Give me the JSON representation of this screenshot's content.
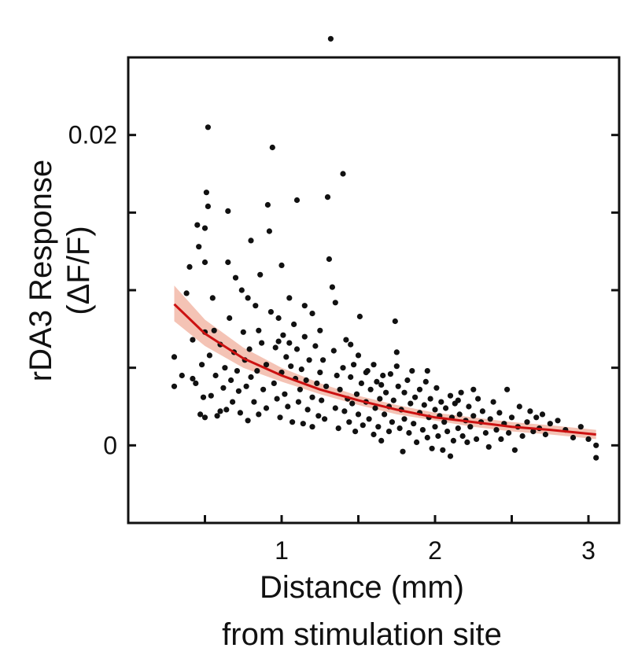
{
  "chart_data": {
    "type": "scatter",
    "title": "",
    "xlabel_lines": [
      "Distance (mm)",
      "from stimulation site"
    ],
    "ylabel_lines": [
      "rDA3 Response",
      "(ΔF/F)"
    ],
    "xlim": [
      0.0,
      3.2
    ],
    "ylim": [
      -0.005,
      0.025
    ],
    "x_ticks": [
      0.5,
      1,
      1.5,
      2,
      2.5,
      3
    ],
    "x_tick_labels": [
      "",
      "1",
      "",
      "2",
      "",
      "3"
    ],
    "y_ticks": [
      0,
      0.005,
      0.01,
      0.015,
      0.02
    ],
    "y_tick_labels": [
      "0",
      "",
      "",
      "",
      "0.02"
    ],
    "grid": false,
    "legend": "none",
    "colors": {
      "points": "#111111",
      "fit": "#cc1111",
      "ci": "#f2b8a8",
      "axis": "#111111"
    },
    "fit": {
      "name": "",
      "x": [
        0.3,
        0.5,
        0.75,
        1.0,
        1.25,
        1.5,
        1.75,
        2.0,
        2.25,
        2.5,
        2.75,
        3.05
      ],
      "y": [
        0.0091,
        0.0072,
        0.0056,
        0.0045,
        0.0036,
        0.0029,
        0.0023,
        0.0018,
        0.0015,
        0.0012,
        0.001,
        0.0007
      ],
      "lower": [
        0.008,
        0.0064,
        0.005,
        0.0041,
        0.0033,
        0.0026,
        0.002,
        0.0016,
        0.0012,
        0.0009,
        0.0007,
        0.0004
      ],
      "upper": [
        0.0103,
        0.0081,
        0.0063,
        0.005,
        0.004,
        0.0032,
        0.0026,
        0.0021,
        0.0018,
        0.0015,
        0.0013,
        0.001
      ]
    },
    "points": [
      [
        0.3,
        0.0057
      ],
      [
        0.3,
        0.0038
      ],
      [
        0.35,
        0.0045
      ],
      [
        0.38,
        0.0098
      ],
      [
        0.4,
        0.0115
      ],
      [
        0.42,
        0.0068
      ],
      [
        0.42,
        0.0043
      ],
      [
        0.44,
        0.004
      ],
      [
        0.45,
        0.0142
      ],
      [
        0.46,
        0.0128
      ],
      [
        0.47,
        0.002
      ],
      [
        0.48,
        0.0052
      ],
      [
        0.49,
        0.0031
      ],
      [
        0.5,
        0.014
      ],
      [
        0.5,
        0.0118
      ],
      [
        0.5,
        0.0073
      ],
      [
        0.5,
        0.0018
      ],
      [
        0.51,
        0.0163
      ],
      [
        0.52,
        0.0154
      ],
      [
        0.52,
        0.0205
      ],
      [
        0.53,
        0.0058
      ],
      [
        0.54,
        0.0032
      ],
      [
        0.55,
        0.0095
      ],
      [
        0.56,
        0.0074
      ],
      [
        0.57,
        0.0045
      ],
      [
        0.58,
        0.0019
      ],
      [
        0.6,
        0.0065
      ],
      [
        0.6,
        0.0022
      ],
      [
        0.62,
        0.0037
      ],
      [
        0.63,
        0.005
      ],
      [
        0.64,
        0.0023
      ],
      [
        0.65,
        0.0118
      ],
      [
        0.65,
        0.0151
      ],
      [
        0.66,
        0.0082
      ],
      [
        0.67,
        0.0042
      ],
      [
        0.68,
        0.0028
      ],
      [
        0.69,
        0.006
      ],
      [
        0.7,
        0.0108
      ],
      [
        0.71,
        0.0048
      ],
      [
        0.72,
        0.0035
      ],
      [
        0.73,
        0.0021
      ],
      [
        0.74,
        0.01
      ],
      [
        0.75,
        0.0073
      ],
      [
        0.76,
        0.0055
      ],
      [
        0.77,
        0.0038
      ],
      [
        0.78,
        0.0016
      ],
      [
        0.79,
        0.0062
      ],
      [
        0.8,
        0.0132
      ],
      [
        0.8,
        0.0044
      ],
      [
        0.82,
        0.0028
      ],
      [
        0.83,
        0.009
      ],
      [
        0.84,
        0.0048
      ],
      [
        0.85,
        0.002
      ],
      [
        0.86,
        0.011
      ],
      [
        0.87,
        0.0066
      ],
      [
        0.88,
        0.0036
      ],
      [
        0.9,
        0.0052
      ],
      [
        0.9,
        0.0024
      ],
      [
        0.91,
        0.0155
      ],
      [
        0.92,
        0.0138
      ],
      [
        0.93,
        0.0086
      ],
      [
        0.94,
        0.0192
      ],
      [
        0.95,
        0.004
      ],
      [
        0.96,
        0.0063
      ],
      [
        0.97,
        0.003
      ],
      [
        0.98,
        0.0082
      ],
      [
        0.99,
        0.0018
      ],
      [
        1.0,
        0.0116
      ],
      [
        1.0,
        0.0047
      ],
      [
        1.01,
        0.0071
      ],
      [
        1.02,
        0.0033
      ],
      [
        1.03,
        0.0057
      ],
      [
        1.04,
        0.0025
      ],
      [
        1.05,
        0.0095
      ],
      [
        1.06,
        0.0051
      ],
      [
        1.07,
        0.0015
      ],
      [
        1.08,
        0.0078
      ],
      [
        1.09,
        0.0043
      ],
      [
        1.1,
        0.0158
      ],
      [
        1.1,
        0.0062
      ],
      [
        1.11,
        0.0028
      ],
      [
        1.12,
        0.0036
      ],
      [
        1.13,
        0.0049
      ],
      [
        1.14,
        0.0014
      ],
      [
        1.15,
        0.007
      ],
      [
        1.16,
        0.0042
      ],
      [
        1.17,
        0.0023
      ],
      [
        1.18,
        0.0055
      ],
      [
        1.2,
        0.0031
      ],
      [
        1.2,
        0.0012
      ],
      [
        1.22,
        0.0064
      ],
      [
        1.23,
        0.004
      ],
      [
        1.24,
        0.0019
      ],
      [
        1.25,
        0.0047
      ],
      [
        1.26,
        0.0029
      ],
      [
        1.27,
        0.0055
      ],
      [
        1.28,
        0.0017
      ],
      [
        1.29,
        0.0038
      ],
      [
        1.3,
        0.016
      ],
      [
        1.31,
        0.012
      ],
      [
        1.32,
        0.0262
      ],
      [
        1.33,
        0.0102
      ],
      [
        1.34,
        0.0061
      ],
      [
        1.35,
        0.0024
      ],
      [
        1.36,
        0.0045
      ],
      [
        1.37,
        0.0011
      ],
      [
        1.38,
        0.0036
      ],
      [
        1.4,
        0.0175
      ],
      [
        1.4,
        0.005
      ],
      [
        1.41,
        0.0022
      ],
      [
        1.42,
        0.0068
      ],
      [
        1.43,
        0.003
      ],
      [
        1.44,
        0.0015
      ],
      [
        1.45,
        0.0044
      ],
      [
        1.46,
        0.0027
      ],
      [
        1.47,
        0.0052
      ],
      [
        1.48,
        0.0009
      ],
      [
        1.49,
        0.0033
      ],
      [
        1.5,
        0.0058
      ],
      [
        1.5,
        0.002
      ],
      [
        1.51,
        0.0083
      ],
      [
        1.52,
        0.004
      ],
      [
        1.53,
        0.0013
      ],
      [
        1.55,
        0.0028
      ],
      [
        1.56,
        0.0048
      ],
      [
        1.57,
        0.0017
      ],
      [
        1.58,
        0.0036
      ],
      [
        1.6,
        0.0007
      ],
      [
        1.6,
        0.0052
      ],
      [
        1.61,
        0.0024
      ],
      [
        1.62,
        0.0041
      ],
      [
        1.63,
        0.0012
      ],
      [
        1.64,
        0.003
      ],
      [
        1.65,
        0.0003
      ],
      [
        1.66,
        0.0045
      ],
      [
        1.67,
        0.002
      ],
      [
        1.68,
        0.0034
      ],
      [
        1.7,
        0.0009
      ],
      [
        1.7,
        0.0025
      ],
      [
        1.71,
        0.0046
      ],
      [
        1.72,
        0.0015
      ],
      [
        1.73,
        0.0029
      ],
      [
        1.74,
        0.008
      ],
      [
        1.75,
        0.006
      ],
      [
        1.76,
        0.0038
      ],
      [
        1.77,
        0.0011
      ],
      [
        1.78,
        0.0023
      ],
      [
        1.79,
        -0.0004
      ],
      [
        1.8,
        0.0034
      ],
      [
        1.8,
        0.0017
      ],
      [
        1.82,
        0.0042
      ],
      [
        1.83,
        0.0008
      ],
      [
        1.84,
        0.0027
      ],
      [
        1.85,
        0.0048
      ],
      [
        1.86,
        0.0014
      ],
      [
        1.87,
        0.0031
      ],
      [
        1.88,
        0.0002
      ],
      [
        1.9,
        0.0021
      ],
      [
        1.9,
        0.0036
      ],
      [
        1.92,
        0.001
      ],
      [
        1.93,
        0.0026
      ],
      [
        1.94,
        0.0041
      ],
      [
        1.95,
        0.0005
      ],
      [
        1.96,
        0.0018
      ],
      [
        1.97,
        0.003
      ],
      [
        1.98,
        -0.0002
      ],
      [
        2.0,
        0.0023
      ],
      [
        2.0,
        0.0012
      ],
      [
        2.01,
        0.0037
      ],
      [
        2.02,
        0.0006
      ],
      [
        2.03,
        0.0019
      ],
      [
        2.04,
        0.0028
      ],
      [
        2.05,
        -0.0003
      ],
      [
        2.06,
        0.0015
      ],
      [
        2.07,
        0.0024
      ],
      [
        2.08,
        0.0009
      ],
      [
        2.1,
        0.0032
      ],
      [
        2.1,
        -0.0007
      ],
      [
        2.11,
        0.0018
      ],
      [
        2.12,
        0.0003
      ],
      [
        2.13,
        0.0027
      ],
      [
        2.15,
        0.0011
      ],
      [
        2.16,
        0.002
      ],
      [
        2.17,
        0.0034
      ],
      [
        2.18,
        0.0006
      ],
      [
        2.2,
        0.0016
      ],
      [
        2.21,
        0.0002
      ],
      [
        2.22,
        0.0025
      ],
      [
        2.23,
        0.0012
      ],
      [
        2.25,
        0.0019
      ],
      [
        2.27,
        0.0004
      ],
      [
        2.28,
        0.003
      ],
      [
        2.3,
        0.0015
      ],
      [
        2.31,
        0.0022
      ],
      [
        2.33,
        0.0008
      ],
      [
        2.35,
        -0.0001
      ],
      [
        2.36,
        0.0017
      ],
      [
        2.38,
        0.0028
      ],
      [
        2.4,
        0.001
      ],
      [
        2.42,
        0.0021
      ],
      [
        2.43,
        0.0004
      ],
      [
        2.45,
        0.0014
      ],
      [
        2.47,
        0.0036
      ],
      [
        2.48,
        0.0008
      ],
      [
        2.5,
        0.0018
      ],
      [
        2.52,
        -0.0003
      ],
      [
        2.54,
        0.0012
      ],
      [
        2.55,
        0.0025
      ],
      [
        2.57,
        0.0006
      ],
      [
        2.6,
        0.0015
      ],
      [
        2.62,
        0.0022
      ],
      [
        2.64,
        0.0009
      ],
      [
        2.66,
        0.0018
      ],
      [
        2.68,
        0.0011
      ],
      [
        2.7,
        0.002
      ],
      [
        2.72,
        0.0007
      ],
      [
        2.75,
        0.0014
      ],
      [
        2.8,
        0.0016
      ],
      [
        2.85,
        0.001
      ],
      [
        2.9,
        0.0005
      ],
      [
        2.95,
        0.0012
      ],
      [
        3.0,
        0.0004
      ],
      [
        3.05,
        0.0
      ],
      [
        3.05,
        -0.0008
      ],
      [
        1.15,
        0.009
      ],
      [
        1.25,
        0.0074
      ],
      [
        1.45,
        0.0065
      ],
      [
        1.2,
        0.0085
      ],
      [
        0.98,
        0.0067
      ],
      [
        1.35,
        0.0092
      ],
      [
        1.55,
        0.0047
      ],
      [
        1.65,
        0.0039
      ],
      [
        0.85,
        0.0074
      ],
      [
        0.78,
        0.0095
      ],
      [
        1.05,
        0.0066
      ],
      [
        1.75,
        0.0051
      ],
      [
        1.95,
        0.0048
      ],
      [
        2.15,
        0.0029
      ],
      [
        2.25,
        0.0036
      ]
    ]
  }
}
